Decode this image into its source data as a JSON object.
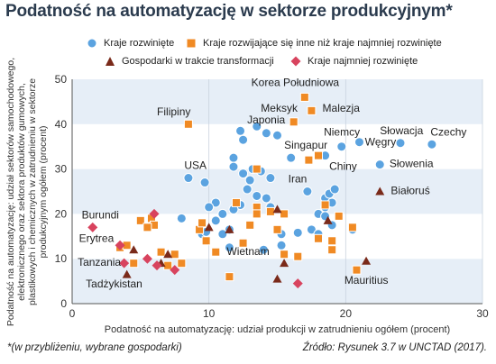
{
  "title": "Podatność na automatyzację w sektorze produkcyjnym*",
  "footer": {
    "note": "*(w przybliżeniu, wybrane gospodarki)",
    "source": "Źródło: Rysunek 3.7 w UNCTAD (2017)."
  },
  "colors": {
    "developed": "#5ba3e0",
    "developing": "#f08a24",
    "transition": "#7a2a1a",
    "least_developed": "#d8435e",
    "band_light": "#e6eef7",
    "band_white": "#ffffff",
    "axis": "#555555",
    "title": "#2b3b4e"
  },
  "chart_data": {
    "type": "scatter",
    "title": "Podatność na automatyzację w sektorze produkcyjnym*",
    "xlabel": "Podatność na automatyzację: udział produkcji w zatrudnieniu ogółem (procent)",
    "ylabel": "Podatność na automatyzację: udział sektorów samochodowego, elektronicznego oraz sektora produktów gumowych, plastikowych i chemicznych w zatrudnieniu w sektorze produkcyjnym ogółem (procent)",
    "ylabel_lines": [
      "Podatność na automatyzację: udział sektorów samochodowego,",
      "elektronicznego oraz sektora produktów gumowych,",
      "plastikowych i chemicznych w zatrudnieniu w sektorze",
      "produkcyjnym ogółem (procent)"
    ],
    "xlim": [
      0,
      30
    ],
    "ylim": [
      0,
      50
    ],
    "xticks": [
      0,
      10,
      20,
      30
    ],
    "yticks": [
      0,
      10,
      20,
      30,
      40,
      50
    ],
    "grid": "horizontal-bands",
    "legend_position": "top",
    "series": [
      {
        "name": "Kraje rozwinięte",
        "marker": "circle",
        "color": "#5ba3e0",
        "points": [
          {
            "x": 11.0,
            "y": 20.0
          },
          {
            "x": 9.7,
            "y": 27.0
          },
          {
            "x": 11.8,
            "y": 32.5
          },
          {
            "x": 12.3,
            "y": 38.5
          },
          {
            "x": 12.5,
            "y": 36.5
          },
          {
            "x": 13.5,
            "y": 39.5
          },
          {
            "x": 14.2,
            "y": 38.0
          },
          {
            "x": 11.8,
            "y": 30.5
          },
          {
            "x": 12.5,
            "y": 29.0
          },
          {
            "x": 13.2,
            "y": 30.0
          },
          {
            "x": 13.8,
            "y": 29.5
          },
          {
            "x": 14.5,
            "y": 28.0
          },
          {
            "x": 13.0,
            "y": 27.5
          },
          {
            "x": 12.8,
            "y": 25.5
          },
          {
            "x": 13.5,
            "y": 24.0
          },
          {
            "x": 14.2,
            "y": 23.5
          },
          {
            "x": 12.3,
            "y": 22.0
          },
          {
            "x": 11.8,
            "y": 21.0
          },
          {
            "x": 14.5,
            "y": 21.5
          },
          {
            "x": 10.5,
            "y": 22.5
          },
          {
            "x": 9.5,
            "y": 15.5
          },
          {
            "x": 9.8,
            "y": 16.0
          },
          {
            "x": 10.5,
            "y": 18.5
          },
          {
            "x": 11.5,
            "y": 16.5
          },
          {
            "x": 11.0,
            "y": 15.5
          },
          {
            "x": 8.0,
            "y": 19.0
          },
          {
            "x": 10.0,
            "y": 21.5
          },
          {
            "x": 15.3,
            "y": 13.0
          },
          {
            "x": 15.3,
            "y": 15.5
          },
          {
            "x": 16.5,
            "y": 15.8
          },
          {
            "x": 17.5,
            "y": 16.5
          },
          {
            "x": 18.0,
            "y": 20.0
          },
          {
            "x": 18.5,
            "y": 21.5
          },
          {
            "x": 18.5,
            "y": 23.5
          },
          {
            "x": 18.8,
            "y": 24.5
          },
          {
            "x": 19.0,
            "y": 22.5
          },
          {
            "x": 19.2,
            "y": 25.5
          },
          {
            "x": 18.5,
            "y": 19.5
          },
          {
            "x": 18.0,
            "y": 15.5
          },
          {
            "x": 20.5,
            "y": 16.5
          },
          {
            "x": 17.2,
            "y": 25.0
          },
          {
            "x": 18.5,
            "y": 33.0
          },
          {
            "x": 16.0,
            "y": 32.5
          },
          {
            "x": 19.7,
            "y": 35.0
          },
          {
            "x": 21.0,
            "y": 36.0
          },
          {
            "x": 24.0,
            "y": 35.8
          },
          {
            "x": 22.5,
            "y": 31.0
          },
          {
            "x": 26.3,
            "y": 35.5
          },
          {
            "x": 8.5,
            "y": 28.0
          },
          {
            "x": 15.0,
            "y": 37.5
          },
          {
            "x": 14.0,
            "y": 12.0
          },
          {
            "x": 11.5,
            "y": 12.5
          },
          {
            "x": 19.0,
            "y": 17.5
          }
        ]
      },
      {
        "name": "Kraje rozwijające się inne niż kraje najmniej rozwinięte",
        "marker": "square",
        "color": "#f08a24",
        "points": [
          {
            "x": 17.0,
            "y": 46.0
          },
          {
            "x": 17.5,
            "y": 43.0
          },
          {
            "x": 16.2,
            "y": 40.5
          },
          {
            "x": 18.0,
            "y": 33.0
          },
          {
            "x": 17.3,
            "y": 32.0
          },
          {
            "x": 8.5,
            "y": 40.0
          },
          {
            "x": 12.0,
            "y": 22.5
          },
          {
            "x": 13.5,
            "y": 21.5
          },
          {
            "x": 13.5,
            "y": 20.0
          },
          {
            "x": 14.5,
            "y": 20.5
          },
          {
            "x": 15.5,
            "y": 20.0
          },
          {
            "x": 15.0,
            "y": 16.5
          },
          {
            "x": 13.0,
            "y": 17.5
          },
          {
            "x": 12.5,
            "y": 13.5
          },
          {
            "x": 10.5,
            "y": 11.5
          },
          {
            "x": 9.8,
            "y": 14.0
          },
          {
            "x": 9.3,
            "y": 16.5
          },
          {
            "x": 9.5,
            "y": 18.0
          },
          {
            "x": 5.0,
            "y": 18.5
          },
          {
            "x": 5.8,
            "y": 19.0
          },
          {
            "x": 6.0,
            "y": 17.5
          },
          {
            "x": 5.5,
            "y": 17.0
          },
          {
            "x": 3.5,
            "y": 12.5
          },
          {
            "x": 4.5,
            "y": 9.0
          },
          {
            "x": 4.0,
            "y": 13.0
          },
          {
            "x": 6.5,
            "y": 11.5
          },
          {
            "x": 7.5,
            "y": 11.0
          },
          {
            "x": 7.0,
            "y": 8.5
          },
          {
            "x": 8.0,
            "y": 9.0
          },
          {
            "x": 11.5,
            "y": 6.0
          },
          {
            "x": 15.5,
            "y": 11.0
          },
          {
            "x": 16.5,
            "y": 10.5
          },
          {
            "x": 18.0,
            "y": 14.5
          },
          {
            "x": 18.5,
            "y": 22.0
          },
          {
            "x": 19.5,
            "y": 19.5
          },
          {
            "x": 19.0,
            "y": 14.0
          },
          {
            "x": 19.0,
            "y": 12.0
          },
          {
            "x": 20.5,
            "y": 17.0
          },
          {
            "x": 20.8,
            "y": 7.5
          },
          {
            "x": 13.5,
            "y": 30.0
          }
        ]
      },
      {
        "name": "Gospodarki w trakcie transformacji",
        "marker": "triangle",
        "color": "#7a2a1a",
        "points": [
          {
            "x": 22.5,
            "y": 25.0
          },
          {
            "x": 21.5,
            "y": 9.5
          },
          {
            "x": 15.0,
            "y": 21.0
          },
          {
            "x": 15.5,
            "y": 9.0
          },
          {
            "x": 18.7,
            "y": 18.5
          },
          {
            "x": 10.0,
            "y": 17.0
          },
          {
            "x": 7.0,
            "y": 11.0
          },
          {
            "x": 6.5,
            "y": 9.0
          },
          {
            "x": 4.5,
            "y": 12.0
          },
          {
            "x": 4.0,
            "y": 6.5
          },
          {
            "x": 15.0,
            "y": 5.5
          },
          {
            "x": 11.5,
            "y": 16.5
          }
        ]
      },
      {
        "name": "Kraje najmniej rozwinięte",
        "marker": "diamond",
        "color": "#d8435e",
        "points": [
          {
            "x": 1.5,
            "y": 17.0
          },
          {
            "x": 6.0,
            "y": 20.0
          },
          {
            "x": 3.5,
            "y": 13.0
          },
          {
            "x": 5.5,
            "y": 10.0
          },
          {
            "x": 3.8,
            "y": 9.0
          },
          {
            "x": 6.2,
            "y": 8.5
          },
          {
            "x": 7.5,
            "y": 7.5
          },
          {
            "x": 16.5,
            "y": 4.5
          }
        ]
      }
    ],
    "annotations": [
      {
        "text": "Korea Południowa",
        "x": 13.1,
        "y": 48.5
      },
      {
        "text": "Filipiny",
        "x": 6.2,
        "y": 42.0
      },
      {
        "text": "Meksyk",
        "x": 13.8,
        "y": 42.8
      },
      {
        "text": "Malezja",
        "x": 18.3,
        "y": 42.8
      },
      {
        "text": "Japonia",
        "x": 12.8,
        "y": 40.2
      },
      {
        "text": "Niemcy",
        "x": 18.4,
        "y": 37.5
      },
      {
        "text": "Słowacja",
        "x": 22.5,
        "y": 37.8
      },
      {
        "text": "Czechy",
        "x": 26.2,
        "y": 37.5
      },
      {
        "text": "Singapur",
        "x": 15.5,
        "y": 34.5
      },
      {
        "text": "Węgry",
        "x": 21.4,
        "y": 35.2
      },
      {
        "text": "USA",
        "x": 8.2,
        "y": 30.0
      },
      {
        "text": "Chiny",
        "x": 18.8,
        "y": 29.8
      },
      {
        "text": "Słowenia",
        "x": 23.2,
        "y": 30.4
      },
      {
        "text": "Iran",
        "x": 15.8,
        "y": 27.0
      },
      {
        "text": "Białoruś",
        "x": 23.3,
        "y": 24.4
      },
      {
        "text": "Burundi",
        "x": 0.7,
        "y": 19.0
      },
      {
        "text": "Erytrea",
        "x": 0.5,
        "y": 13.8
      },
      {
        "text": "Wietnam",
        "x": 11.3,
        "y": 10.8
      },
      {
        "text": "Tanzania",
        "x": 0.4,
        "y": 8.4
      },
      {
        "text": "Mauritius",
        "x": 19.9,
        "y": 4.4
      },
      {
        "text": "Tadżykistan",
        "x": 1.0,
        "y": 3.6
      }
    ]
  }
}
